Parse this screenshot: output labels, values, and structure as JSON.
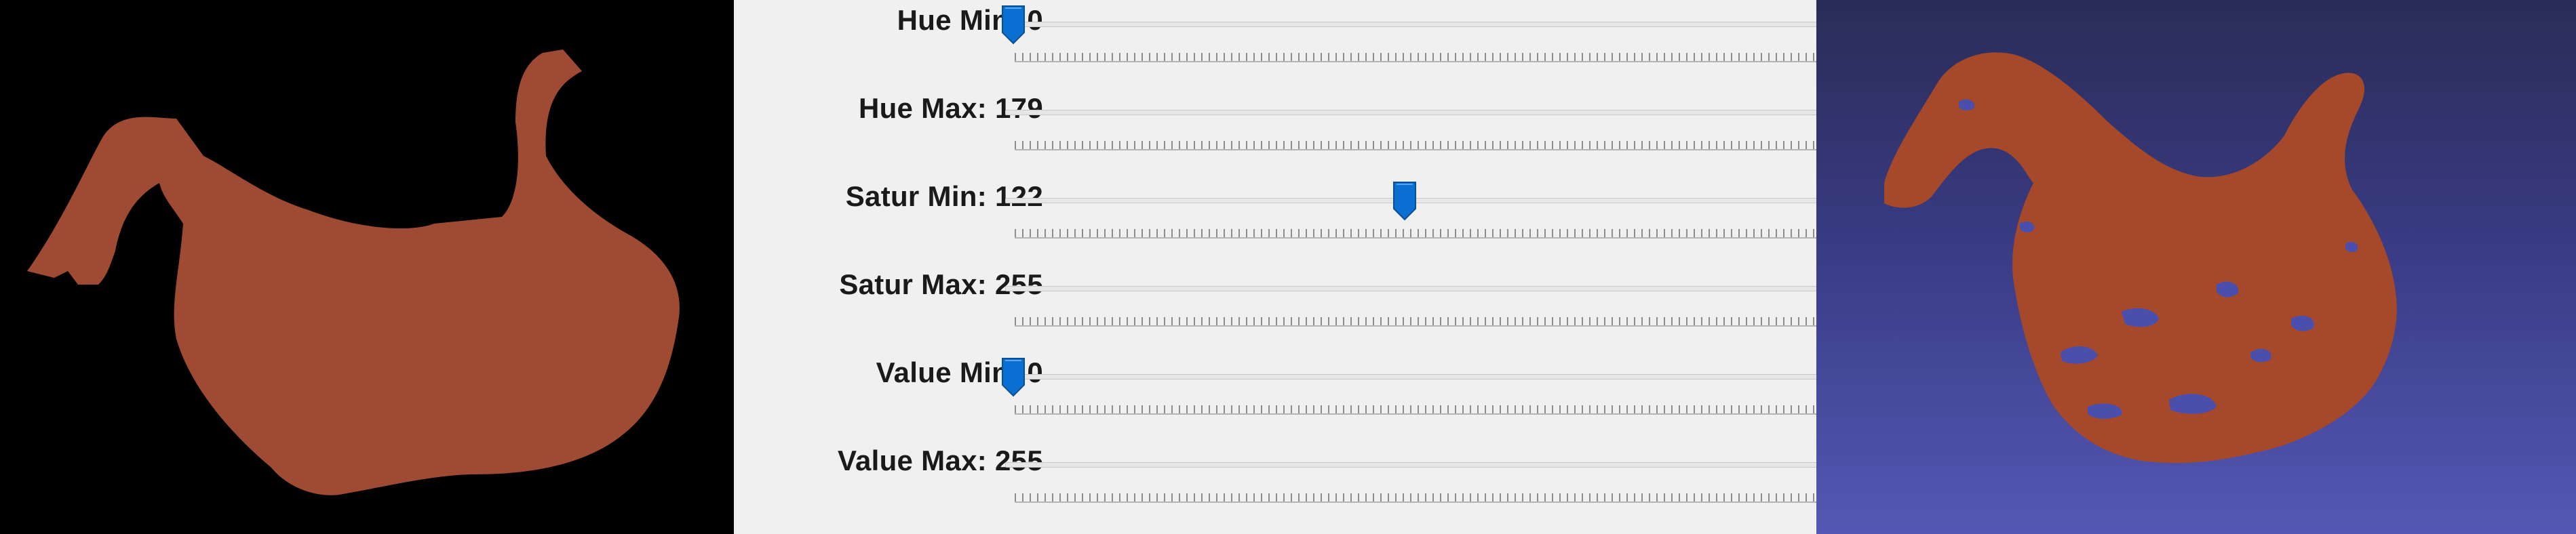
{
  "sliders": [
    {
      "label": "Hue Min: 0",
      "value": 0,
      "max": 179
    },
    {
      "label": "Hue Max: 179",
      "value": 179,
      "max": 179
    },
    {
      "label": "Satur Min: 122",
      "value": 122,
      "max": 255
    },
    {
      "label": "Satur Max: 255",
      "value": 255,
      "max": 255
    },
    {
      "label": "Value Min: 0",
      "value": 0,
      "max": 255
    },
    {
      "label": "Value Max: 255",
      "value": 255,
      "max": 255
    }
  ],
  "colors": {
    "accent": "#0a6fd1",
    "object": "#9f4a33",
    "left_background": "#000000",
    "right_background_top": "#2a2c57",
    "right_background_bottom": "#5557b4"
  }
}
